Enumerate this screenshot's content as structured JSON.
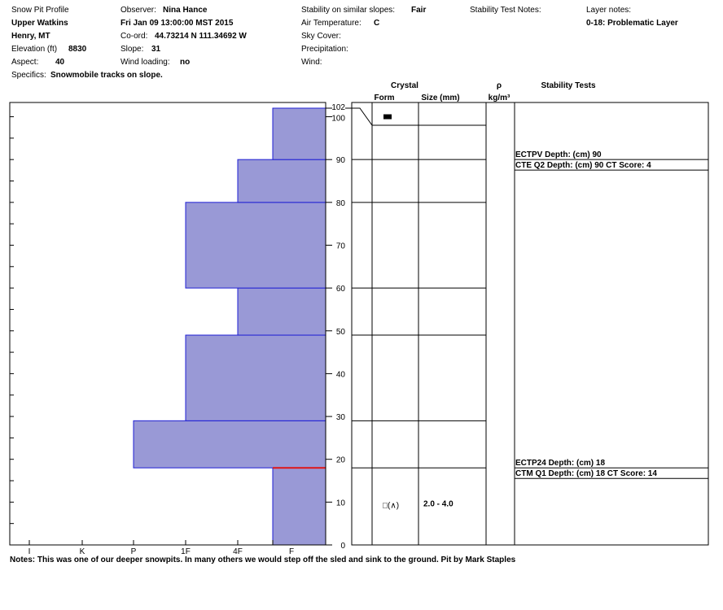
{
  "header": {
    "title": "Snow Pit Profile",
    "location_name": "Upper Watkins",
    "region": "Henry, MT",
    "elevation_label": "Elevation (ft)",
    "elevation_value": "8830",
    "aspect_label": "Aspect:",
    "aspect_value": "40",
    "specifics_label": "Specifics:",
    "specifics_value": "Snowmobile tracks on slope.",
    "observer_label": "Observer:",
    "observer_value": "Nina Hance",
    "datetime": "Fri Jan 09 13:00:00 MST 2015",
    "coord_label": "Co-ord:",
    "coord_value": "44.73214 N 111.34692 W",
    "slope_label": "Slope:",
    "slope_value": "31",
    "wind_loading_label": "Wind loading:",
    "wind_loading_value": "no",
    "stability_label": "Stability on similar slopes:",
    "stability_value": "Fair",
    "air_temp_label": "Air Temperature:",
    "air_temp_value": "C",
    "sky_cover_label": "Sky Cover:",
    "precip_label": "Precipitation:",
    "wind_label": "Wind:",
    "stability_notes_label": "Stability Test Notes:",
    "layer_notes_label": "Layer notes:",
    "layer_notes_value": "0-18: Problematic Layer"
  },
  "notes": "Notes:  This was one of our deeper snowpits. In many others we would step off the sled and sink to the ground. Pit by Mark Staples",
  "colors": {
    "hardness_fill": "#9999d6",
    "hardness_edge": "#1f1fd4",
    "problem_line": "#e01515"
  },
  "chart_data": {
    "type": "snowpit-profile",
    "depth_ylim": [
      0,
      102
    ],
    "depth_ticks": [
      0,
      10,
      20,
      30,
      40,
      50,
      60,
      70,
      80,
      90,
      100,
      102
    ],
    "hardness_categories": [
      "I",
      "K",
      "P",
      "1F",
      "4F",
      "F"
    ],
    "hardness_layers": [
      {
        "bottom": 0,
        "top": 18,
        "hardness": "F"
      },
      {
        "bottom": 18,
        "top": 29,
        "hardness": "P"
      },
      {
        "bottom": 29,
        "top": 49,
        "hardness": "1F"
      },
      {
        "bottom": 49,
        "top": 60,
        "hardness": "4F"
      },
      {
        "bottom": 60,
        "top": 80,
        "hardness": "1F"
      },
      {
        "bottom": 80,
        "top": 90,
        "hardness": "4F"
      },
      {
        "bottom": 90,
        "top": 102,
        "hardness": "F"
      }
    ],
    "problem_layer_depth": 18,
    "crystal_header": {
      "crystal": "Crystal",
      "form": "Form",
      "size": "Size (mm)",
      "rho": "ρ",
      "density_unit": "kg/m³",
      "stability": "Stability Tests"
    },
    "crystal_observations": [
      {
        "depth": 100,
        "form_symbol": "■",
        "size": ""
      },
      {
        "depth": 10,
        "form_symbol": "□(∧)",
        "size": "2.0 - 4.0"
      }
    ],
    "stability_tests": [
      {
        "depth": 90,
        "lines": [
          "ECTPV  Depth: (cm) 90",
          "CTE Q2 Depth: (cm) 90 CT Score: 4"
        ]
      },
      {
        "depth": 18,
        "lines": [
          "ECTP24  Depth: (cm) 18",
          "CTM Q1 Depth: (cm) 18 CT Score: 14"
        ]
      }
    ]
  }
}
